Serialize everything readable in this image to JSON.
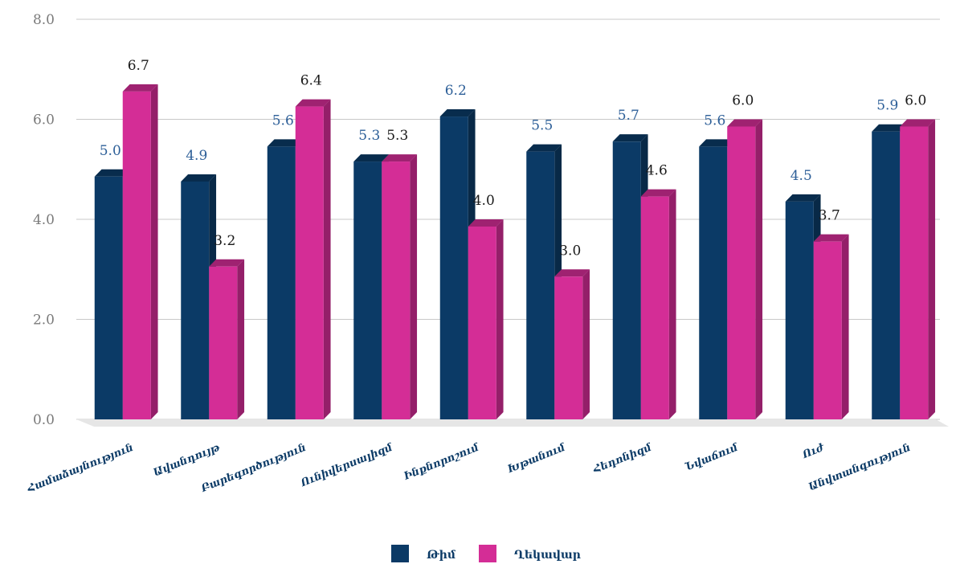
{
  "chart_data": {
    "type": "bar",
    "categories": [
      "Համաձայնություն",
      "Ավանդույթ",
      "Բարեգործություն",
      "Ունիվերսալիզմ",
      "Ինքնորոշում",
      "Խթանում",
      "Հեդոնիզմ",
      "Նվաճում",
      "Ուժ",
      "Անվտանգություն"
    ],
    "series": [
      {
        "name": "Թիմ",
        "color": "#0b3a66",
        "values": [
          5.0,
          4.9,
          5.6,
          5.3,
          6.2,
          5.5,
          5.7,
          5.6,
          4.5,
          5.9
        ]
      },
      {
        "name": "Ղեկավար",
        "color": "#d42d96",
        "values": [
          6.7,
          3.2,
          6.4,
          5.3,
          4.0,
          3.0,
          4.6,
          6.0,
          3.7,
          6.0
        ]
      }
    ],
    "data_labels": {
      "series0": [
        "5.0",
        "4.9",
        "5.6",
        "5.3",
        "6.2",
        "5.5",
        "5.7",
        "5.6",
        "4.5",
        "5.9"
      ],
      "series1": [
        "6.7",
        "3.2",
        "6.4",
        "5.3",
        "4.0",
        "3.0",
        "4.6",
        "6.0",
        "3.7",
        "6.0"
      ]
    },
    "ylim": [
      0,
      8
    ],
    "yticks": [
      "0.0",
      "2.0",
      "4.0",
      "6.0",
      "8.0"
    ],
    "grid": true,
    "legend_position": "bottom",
    "title": "",
    "xlabel": "",
    "ylabel": ""
  }
}
